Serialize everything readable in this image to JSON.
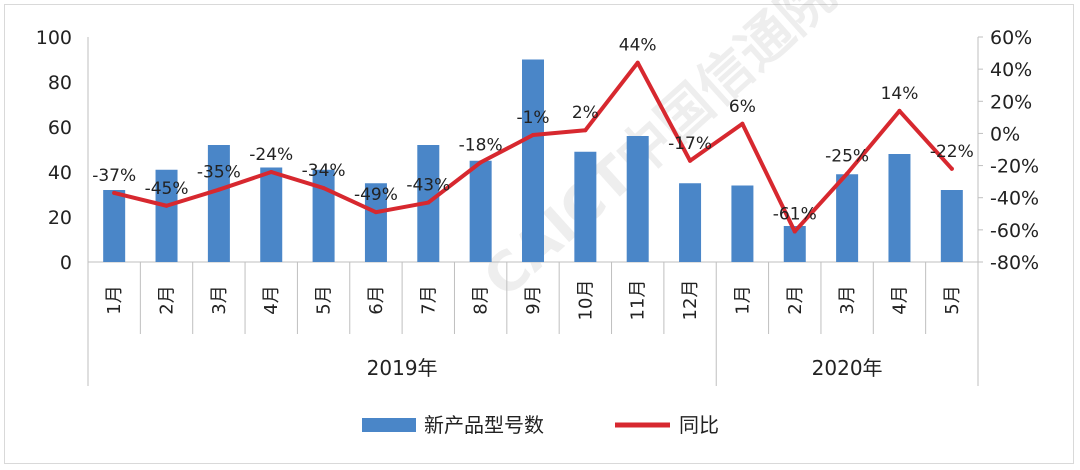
{
  "chart_data": {
    "type": "bar+line",
    "categories": [
      "1月",
      "2月",
      "3月",
      "4月",
      "5月",
      "6月",
      "7月",
      "8月",
      "9月",
      "10月",
      "11月",
      "12月",
      "1月",
      "2月",
      "3月",
      "4月",
      "5月"
    ],
    "groups": [
      {
        "label": "2019年",
        "start": 0,
        "end": 11
      },
      {
        "label": "2020年",
        "start": 12,
        "end": 16
      }
    ],
    "series": [
      {
        "name": "新产品型号数",
        "type": "bar",
        "axis": "left",
        "color": "#4a86c8",
        "values": [
          32,
          41,
          52,
          42,
          41,
          35,
          52,
          45,
          90,
          49,
          56,
          35,
          34,
          16,
          39,
          48,
          32
        ]
      },
      {
        "name": "同比",
        "type": "line",
        "axis": "right",
        "color": "#d7282f",
        "values": [
          -37,
          -45,
          -35,
          -24,
          -34,
          -49,
          -43,
          -18,
          -1,
          2,
          44,
          -17,
          6,
          -61,
          -25,
          14,
          -22
        ],
        "labels": [
          "-37%",
          "-45%",
          "-35%",
          "-24%",
          "-34%",
          "-49%",
          "-43%",
          "-18%",
          "-1%",
          "2%",
          "44%",
          "-17%",
          "6%",
          "-61%",
          "-25%",
          "14%",
          "-22%"
        ]
      }
    ],
    "y_left": {
      "range": [
        0,
        100
      ],
      "ticks": [
        "0",
        "20",
        "40",
        "60",
        "80",
        "100"
      ]
    },
    "y_right": {
      "range": [
        -80,
        60
      ],
      "ticks": [
        "-80%",
        "-60%",
        "-40%",
        "-20%",
        "0%",
        "20%",
        "40%",
        "60%"
      ]
    },
    "legend_position": "bottom",
    "grid": false
  }
}
